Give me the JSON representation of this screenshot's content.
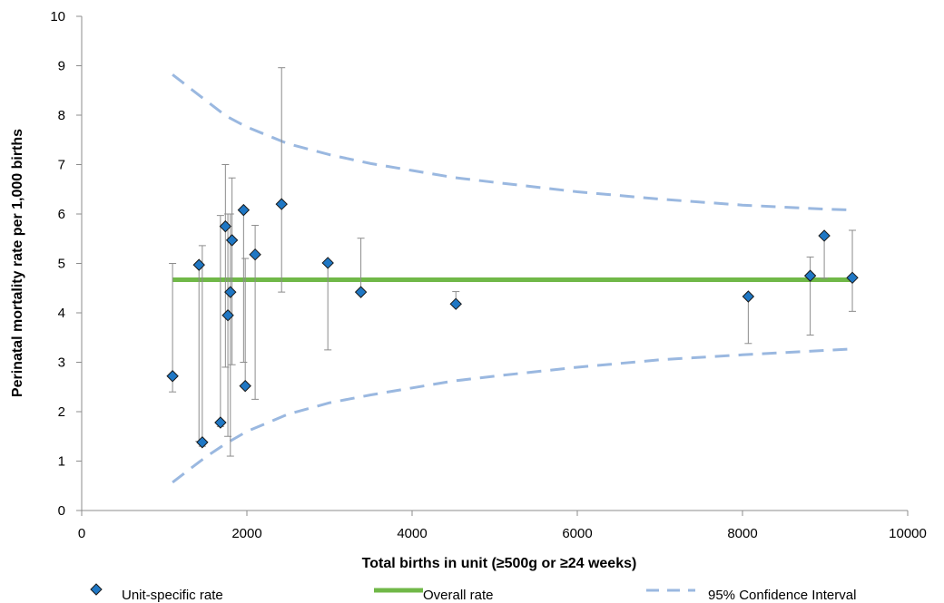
{
  "chart_data": {
    "type": "scatter",
    "title": "",
    "xlabel": "Total births in unit (≥500g or ≥24 weeks)",
    "ylabel": "Perinatal mortality rate per 1,000 births",
    "xlim": [
      0,
      10000
    ],
    "ylim": [
      0,
      10
    ],
    "x_ticks": [
      0,
      2000,
      4000,
      6000,
      8000,
      10000
    ],
    "y_ticks": [
      0,
      1,
      2,
      3,
      4,
      5,
      6,
      7,
      8,
      9,
      10
    ],
    "grid": false,
    "legend_position": "bottom",
    "series": [
      {
        "name": "Unit-specific rate",
        "kind": "points",
        "color": "#1f77c4",
        "points": [
          {
            "x": 1100,
            "y": 2.72,
            "low": 2.4,
            "high": 5.0
          },
          {
            "x": 1420,
            "y": 4.97,
            "low": 1.4,
            "high": 5.0
          },
          {
            "x": 1460,
            "y": 1.38,
            "low": 1.3,
            "high": 5.36
          },
          {
            "x": 1680,
            "y": 1.78,
            "low": 1.7,
            "high": 5.97
          },
          {
            "x": 1740,
            "y": 5.75,
            "low": 2.9,
            "high": 7.0
          },
          {
            "x": 1770,
            "y": 3.95,
            "low": 1.5,
            "high": 6.0
          },
          {
            "x": 1800,
            "y": 4.42,
            "low": 1.1,
            "high": 6.0
          },
          {
            "x": 1820,
            "y": 5.47,
            "low": 2.95,
            "high": 6.73
          },
          {
            "x": 1960,
            "y": 6.08,
            "low": 3.0,
            "high": 6.1
          },
          {
            "x": 1980,
            "y": 2.52,
            "low": 2.5,
            "high": 5.1
          },
          {
            "x": 2100,
            "y": 5.18,
            "low": 2.25,
            "high": 5.77
          },
          {
            "x": 2420,
            "y": 6.2,
            "low": 4.42,
            "high": 8.96
          },
          {
            "x": 2980,
            "y": 5.01,
            "low": 3.25,
            "high": 5.05
          },
          {
            "x": 3380,
            "y": 4.42,
            "low": 4.4,
            "high": 5.51
          },
          {
            "x": 4530,
            "y": 4.18,
            "low": 4.15,
            "high": 4.43
          },
          {
            "x": 8070,
            "y": 4.33,
            "low": 3.38,
            "high": 4.35
          },
          {
            "x": 8820,
            "y": 4.75,
            "low": 3.55,
            "high": 5.13
          },
          {
            "x": 8990,
            "y": 5.56,
            "low": 4.7,
            "high": 5.6
          },
          {
            "x": 9330,
            "y": 4.71,
            "low": 4.03,
            "high": 5.67
          }
        ]
      },
      {
        "name": "Overall rate",
        "kind": "line",
        "color": "#70b848",
        "x": [
          1100,
          9330
        ],
        "y": [
          4.67,
          4.67
        ]
      },
      {
        "name": "95% Confidence Interval",
        "kind": "dashed",
        "color": "#9ab8e0",
        "upper": {
          "x": [
            1100,
            1500,
            1750,
            2000,
            2500,
            3000,
            3500,
            4000,
            4500,
            5000,
            6000,
            7000,
            8000,
            9000,
            9330
          ],
          "y": [
            8.82,
            8.3,
            7.98,
            7.76,
            7.42,
            7.2,
            7.02,
            6.88,
            6.74,
            6.64,
            6.45,
            6.3,
            6.18,
            6.1,
            6.08
          ]
        },
        "lower": {
          "x": [
            1100,
            1500,
            1750,
            2000,
            2500,
            3000,
            3500,
            4000,
            4500,
            5000,
            6000,
            7000,
            8000,
            9000,
            9330
          ],
          "y": [
            0.57,
            1.08,
            1.36,
            1.6,
            1.95,
            2.18,
            2.34,
            2.48,
            2.62,
            2.72,
            2.9,
            3.05,
            3.15,
            3.24,
            3.27
          ]
        }
      }
    ]
  }
}
